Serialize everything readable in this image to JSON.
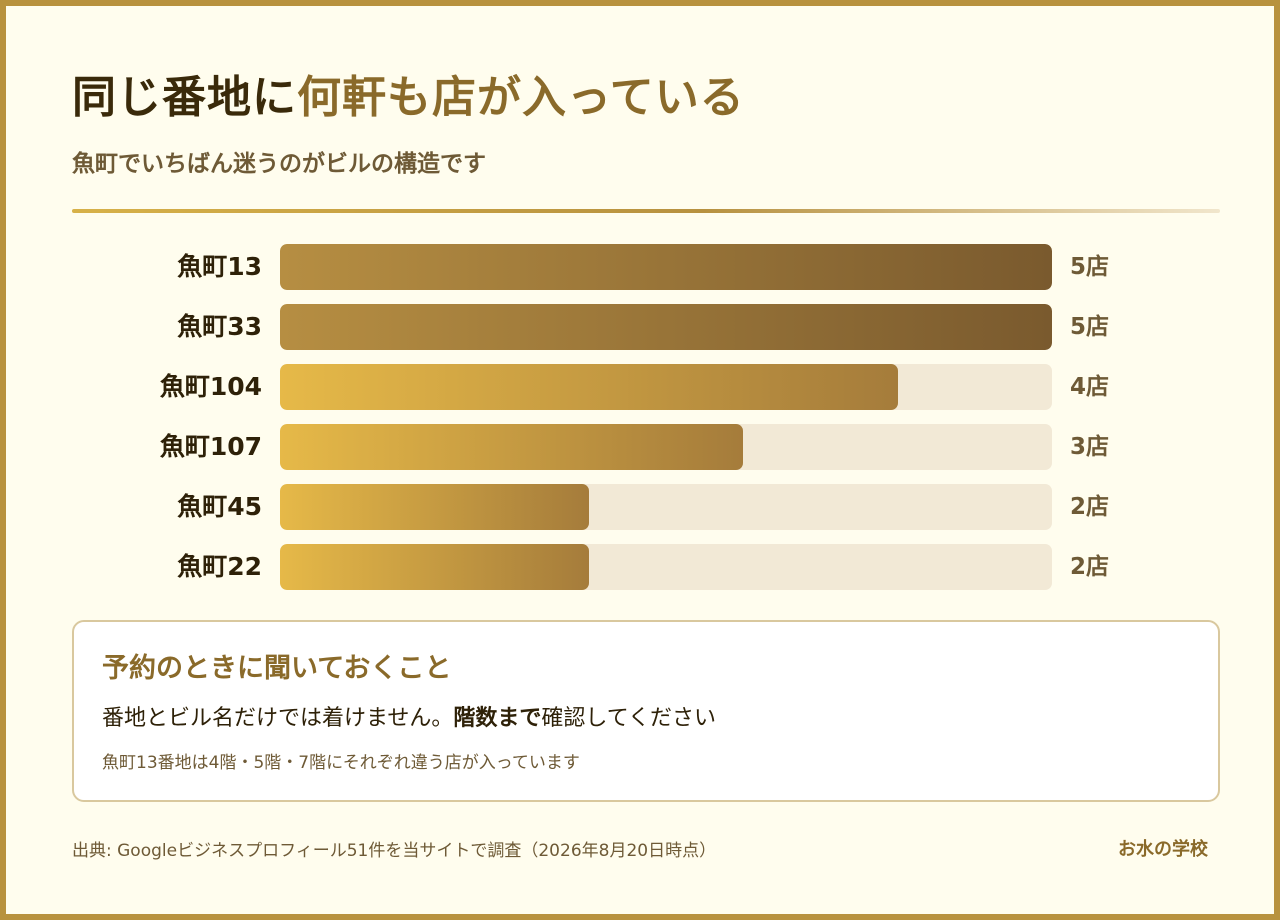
{
  "title": {
    "part1": "同じ番地に",
    "part2": "何軒も店が入っている"
  },
  "subtitle": "魚町でいちばん迷うのがビルの構造です",
  "chart_data": {
    "type": "bar",
    "orientation": "horizontal",
    "categories": [
      "魚町13",
      "魚町33",
      "魚町104",
      "魚町107",
      "魚町45",
      "魚町22"
    ],
    "values": [
      5,
      5,
      4,
      3,
      2,
      2
    ],
    "value_labels": [
      "5店",
      "5店",
      "4店",
      "3店",
      "2店",
      "2店"
    ],
    "xlim": [
      0,
      5
    ],
    "grid": false,
    "colors": {
      "max_start": "#b68e42",
      "max_end": "#7a5a2e",
      "start": "#e6b948",
      "end": "#a57c3b",
      "track": "#f2e9d6"
    }
  },
  "note": {
    "heading": "予約のときに聞いておくこと",
    "body_pre": "番地とビル名だけでは着けません。",
    "body_bold": "階数まで",
    "body_post": "確認してください",
    "small": "魚町13番地は4階・5階・7階にそれぞれ違う店が入っています"
  },
  "source": "出典: Googleビジネスプロフィール51件を当サイトで調査（2026年8月20日時点）",
  "brand": "お水の学校",
  "colors": {
    "background": "#fffdee",
    "border": "#b8923e",
    "accent": "#8a6a2a",
    "dark_text": "#3a2a0a"
  }
}
